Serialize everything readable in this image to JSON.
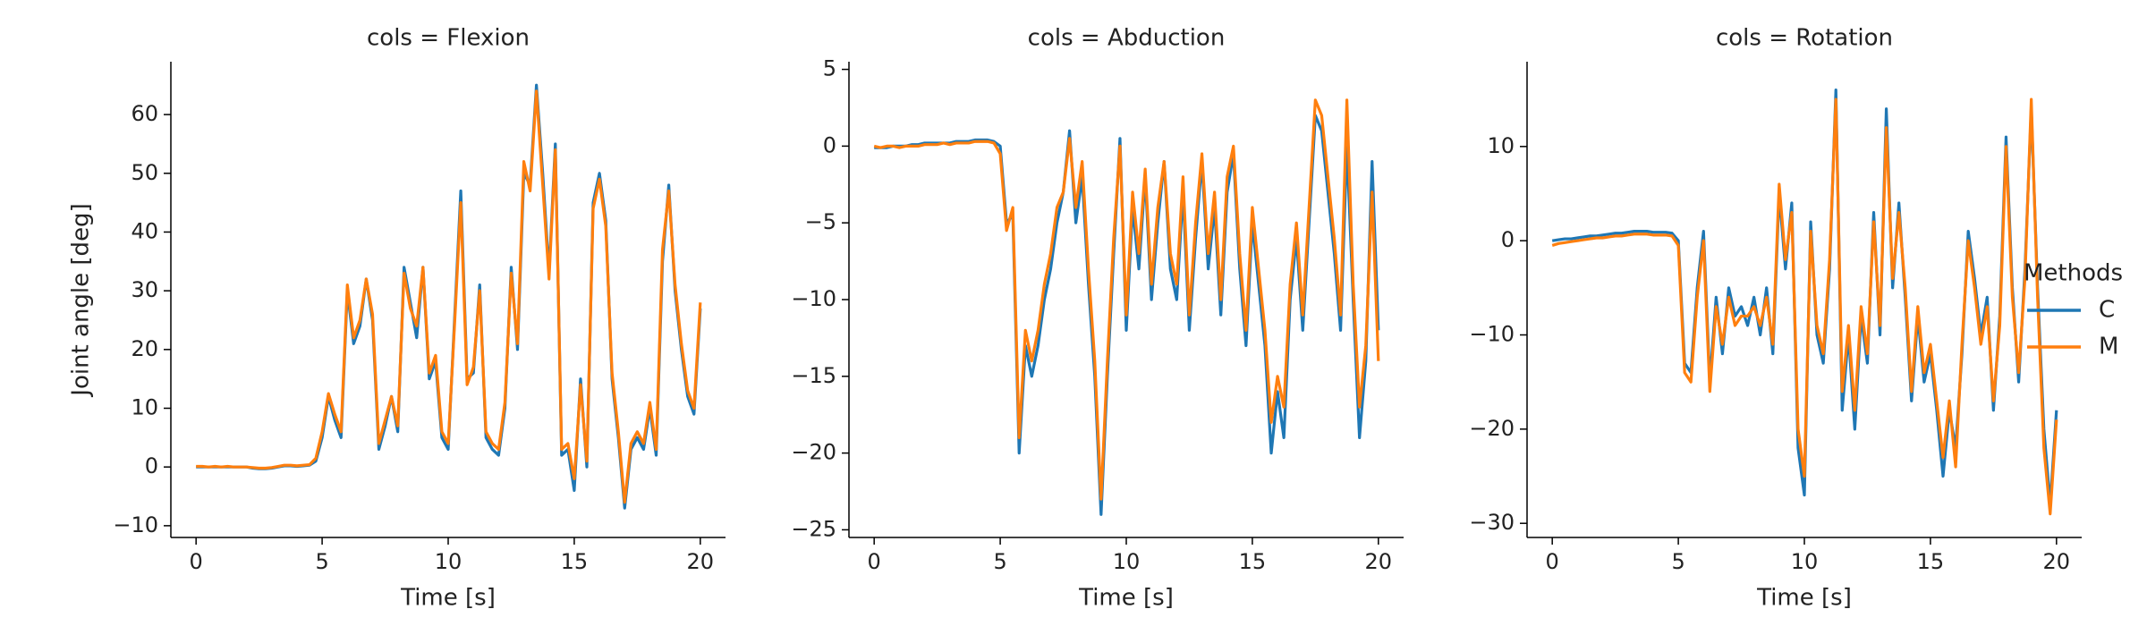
{
  "chart_data": [
    {
      "type": "line",
      "title": "cols = Flexion",
      "x_label": "Time [s]",
      "y_label": "Joint angle [deg]",
      "x": [
        0,
        0.25,
        0.5,
        0.75,
        1,
        1.25,
        1.5,
        1.75,
        2,
        2.25,
        2.5,
        2.75,
        3,
        3.25,
        3.5,
        3.75,
        4,
        4.25,
        4.5,
        4.75,
        5,
        5.25,
        5.5,
        5.75,
        6,
        6.25,
        6.5,
        6.75,
        7,
        7.25,
        7.5,
        7.75,
        8,
        8.25,
        8.5,
        8.75,
        9,
        9.25,
        9.5,
        9.75,
        10,
        10.25,
        10.5,
        10.75,
        11,
        11.25,
        11.5,
        11.75,
        12,
        12.25,
        12.5,
        12.75,
        13,
        13.25,
        13.5,
        13.75,
        14,
        14.25,
        14.5,
        14.75,
        15,
        15.25,
        15.5,
        15.75,
        16,
        16.25,
        16.5,
        16.75,
        17,
        17.25,
        17.5,
        17.75,
        18,
        18.25,
        18.5,
        18.75,
        19,
        19.25,
        19.5,
        19.75,
        20
      ],
      "series": [
        {
          "color": "#1f77b4",
          "values": [
            0,
            0,
            0,
            0,
            0,
            0,
            0,
            0,
            0,
            -0.2,
            -0.3,
            -0.3,
            -0.2,
            0,
            0.2,
            0.2,
            0.1,
            0.2,
            0.3,
            1,
            5,
            12,
            8,
            5,
            30,
            21,
            24,
            32,
            25,
            3,
            7,
            12,
            6,
            34,
            28,
            22,
            34,
            15,
            18,
            5,
            3,
            25,
            47,
            15,
            16,
            31,
            5,
            3,
            2,
            10,
            34,
            20,
            50,
            48,
            65,
            50,
            33,
            55,
            2,
            3,
            -4,
            15,
            0,
            45,
            50,
            42,
            15,
            5,
            -7,
            3,
            5,
            3,
            10,
            2,
            35,
            48,
            30,
            20,
            12,
            9,
            27
          ]
        },
        {
          "color": "#ff7f0e",
          "values": [
            0.1,
            0.1,
            0,
            0.1,
            0,
            0.1,
            0,
            0,
            0,
            -0.1,
            -0.2,
            -0.2,
            -0.1,
            0.1,
            0.3,
            0.3,
            0.2,
            0.3,
            0.4,
            1.5,
            6,
            12.5,
            9,
            6,
            31,
            22,
            25,
            32,
            26,
            4,
            8,
            12,
            7,
            33,
            27,
            24,
            34,
            16,
            19,
            6,
            4,
            24,
            45,
            14,
            17,
            30,
            6,
            4,
            3,
            11,
            33,
            21,
            52,
            47,
            64,
            48,
            32,
            54,
            3,
            4,
            -2,
            14,
            1,
            44,
            49,
            41,
            16,
            6,
            -6,
            4,
            6,
            4,
            11,
            3,
            37,
            47,
            31,
            21,
            13,
            10,
            28
          ]
        }
      ],
      "xlim": [
        -1,
        21
      ],
      "xticks": [
        0,
        5,
        10,
        15,
        20
      ],
      "ylim": [
        -12,
        69
      ],
      "yticks": [
        {
          "value": -10,
          "label": "−10"
        },
        0,
        10,
        20,
        30,
        40,
        50,
        60
      ]
    },
    {
      "type": "line",
      "title": "cols = Abduction",
      "x_label": "Time [s]",
      "x": [
        0,
        0.25,
        0.5,
        0.75,
        1,
        1.25,
        1.5,
        1.75,
        2,
        2.25,
        2.5,
        2.75,
        3,
        3.25,
        3.5,
        3.75,
        4,
        4.25,
        4.5,
        4.75,
        5,
        5.25,
        5.5,
        5.75,
        6,
        6.25,
        6.5,
        6.75,
        7,
        7.25,
        7.5,
        7.75,
        8,
        8.25,
        8.5,
        8.75,
        9,
        9.25,
        9.5,
        9.75,
        10,
        10.25,
        10.5,
        10.75,
        11,
        11.25,
        11.5,
        11.75,
        12,
        12.25,
        12.5,
        12.75,
        13,
        13.25,
        13.5,
        13.75,
        14,
        14.25,
        14.5,
        14.75,
        15,
        15.25,
        15.5,
        15.75,
        16,
        16.25,
        16.5,
        16.75,
        17,
        17.25,
        17.5,
        17.75,
        18,
        18.25,
        18.5,
        18.75,
        19,
        19.25,
        19.5,
        19.75,
        20
      ],
      "series": [
        {
          "color": "#1f77b4",
          "values": [
            -0.1,
            -0.1,
            -0.1,
            0,
            0,
            0,
            0.1,
            0.1,
            0.2,
            0.2,
            0.2,
            0.2,
            0.2,
            0.3,
            0.3,
            0.3,
            0.4,
            0.4,
            0.4,
            0.3,
            0,
            -5,
            -4.5,
            -20,
            -13,
            -15,
            -13,
            -10,
            -8,
            -5,
            -3,
            1,
            -5,
            -2,
            -9,
            -15,
            -24,
            -15,
            -7,
            0.5,
            -12,
            -4,
            -8,
            -2,
            -10,
            -5,
            -1,
            -8,
            -10,
            -3,
            -12,
            -6,
            -1,
            -8,
            -4,
            -11,
            -3,
            -0.5,
            -8,
            -13,
            -5,
            -9,
            -13,
            -20,
            -16,
            -19,
            -10,
            -6,
            -12,
            -5,
            2,
            1,
            -3,
            -7,
            -12,
            0,
            -10,
            -19,
            -14,
            -1,
            -12
          ]
        },
        {
          "color": "#ff7f0e",
          "values": [
            0,
            -0.1,
            0,
            0,
            -0.1,
            0,
            0,
            0,
            0.1,
            0.1,
            0.1,
            0.2,
            0.1,
            0.2,
            0.2,
            0.2,
            0.3,
            0.3,
            0.3,
            0.2,
            -0.5,
            -5.5,
            -4,
            -19,
            -12,
            -14,
            -12,
            -9,
            -7,
            -4,
            -3,
            0.5,
            -4,
            -1,
            -8,
            -14,
            -23,
            -14,
            -6,
            0,
            -11,
            -3,
            -7,
            -1.5,
            -9,
            -4,
            -1,
            -7,
            -9,
            -2,
            -11,
            -5,
            -0.5,
            -7,
            -3,
            -10,
            -2,
            0,
            -7,
            -12,
            -4,
            -8,
            -12,
            -18,
            -15,
            -17,
            -9,
            -5,
            -11,
            -4,
            3,
            2,
            -2,
            -6,
            -11,
            3,
            -9,
            -17,
            -13,
            -3,
            -14
          ]
        }
      ],
      "xlim": [
        -1,
        21
      ],
      "xticks": [
        0,
        5,
        10,
        15,
        20
      ],
      "ylim": [
        -25.5,
        5.5
      ],
      "yticks": [
        {
          "value": -25,
          "label": "−25"
        },
        {
          "value": -20,
          "label": "−20"
        },
        {
          "value": -15,
          "label": "−15"
        },
        {
          "value": -10,
          "label": "−10"
        },
        {
          "value": -5,
          "label": "−5"
        },
        0,
        5
      ]
    },
    {
      "type": "line",
      "title": "cols = Rotation",
      "x_label": "Time [s]",
      "legend_title": "Methods",
      "x": [
        0,
        0.25,
        0.5,
        0.75,
        1,
        1.25,
        1.5,
        1.75,
        2,
        2.25,
        2.5,
        2.75,
        3,
        3.25,
        3.5,
        3.75,
        4,
        4.25,
        4.5,
        4.75,
        5,
        5.25,
        5.5,
        5.75,
        6,
        6.25,
        6.5,
        6.75,
        7,
        7.25,
        7.5,
        7.75,
        8,
        8.25,
        8.5,
        8.75,
        9,
        9.25,
        9.5,
        9.75,
        10,
        10.25,
        10.5,
        10.75,
        11,
        11.25,
        11.5,
        11.75,
        12,
        12.25,
        12.5,
        12.75,
        13,
        13.25,
        13.5,
        13.75,
        14,
        14.25,
        14.5,
        14.75,
        15,
        15.25,
        15.5,
        15.75,
        16,
        16.25,
        16.5,
        16.75,
        17,
        17.25,
        17.5,
        17.75,
        18,
        18.25,
        18.5,
        18.75,
        19,
        19.25,
        19.5,
        19.75,
        20
      ],
      "series": [
        {
          "name": "C",
          "color": "#1f77b4",
          "values": [
            0,
            0.1,
            0.2,
            0.2,
            0.3,
            0.4,
            0.5,
            0.5,
            0.6,
            0.7,
            0.8,
            0.8,
            0.9,
            1,
            1,
            1,
            0.9,
            0.9,
            0.9,
            0.8,
            0,
            -13,
            -14,
            -5,
            1,
            -15,
            -6,
            -12,
            -5,
            -8,
            -7,
            -9,
            -6,
            -10,
            -5,
            -12,
            5,
            -3,
            4,
            -22,
            -27,
            2,
            -10,
            -13,
            -3,
            16,
            -18,
            -10,
            -20,
            -8,
            -13,
            3,
            -10,
            14,
            -5,
            4,
            -6,
            -17,
            -8,
            -15,
            -12,
            -18,
            -25,
            -18,
            -22,
            -12,
            1,
            -4,
            -10,
            -6,
            -18,
            -8,
            11,
            -5,
            -15,
            -3,
            14,
            -5,
            -20,
            -28,
            -18
          ]
        },
        {
          "name": "M",
          "color": "#ff7f0e",
          "values": [
            -0.5,
            -0.3,
            -0.2,
            -0.1,
            0,
            0.1,
            0.2,
            0.3,
            0.3,
            0.4,
            0.5,
            0.5,
            0.6,
            0.7,
            0.7,
            0.7,
            0.6,
            0.6,
            0.6,
            0.5,
            -0.5,
            -14,
            -15,
            -6,
            0,
            -16,
            -7,
            -11,
            -6,
            -9,
            -8,
            -8,
            -7,
            -9,
            -6,
            -11,
            6,
            -2,
            3,
            -20,
            -25,
            1,
            -9,
            -12,
            -2,
            15,
            -16,
            -9,
            -18,
            -7,
            -12,
            2,
            -9,
            12,
            -4,
            3,
            -5,
            -16,
            -7,
            -14,
            -11,
            -17,
            -23,
            -17,
            -24,
            -11,
            0,
            -5,
            -11,
            -7,
            -17,
            -9,
            10,
            -6,
            -14,
            -4,
            15,
            -6,
            -22,
            -29,
            -19
          ]
        }
      ],
      "xlim": [
        -1,
        21
      ],
      "xticks": [
        0,
        5,
        10,
        15,
        20
      ],
      "ylim": [
        -31.5,
        19
      ],
      "yticks": [
        {
          "value": -30,
          "label": "−30"
        },
        {
          "value": -20,
          "label": "−20"
        },
        {
          "value": -10,
          "label": "−10"
        },
        0,
        10
      ]
    }
  ]
}
